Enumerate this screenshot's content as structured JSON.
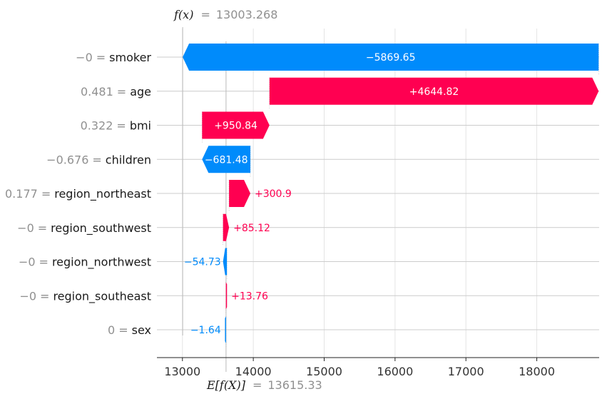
{
  "chart_data": {
    "type": "waterfall",
    "base_value": 13615.33,
    "output_value": 13003.268,
    "base_label": "E[f(X)]",
    "base_value_text": "13615.33",
    "output_label": "f(x)",
    "output_value_text": "13003.268",
    "features": [
      {
        "name": "smoker",
        "value": "−0",
        "contribution": -5869.65,
        "label": "−5869.65"
      },
      {
        "name": "age",
        "value": "0.481",
        "contribution": 4644.82,
        "label": "+4644.82"
      },
      {
        "name": "bmi",
        "value": "0.322",
        "contribution": 950.84,
        "label": "+950.84"
      },
      {
        "name": "children",
        "value": "−0.676",
        "contribution": -681.48,
        "label": "−681.48"
      },
      {
        "name": "region_northeast",
        "value": "0.177",
        "contribution": 300.9,
        "label": "+300.9"
      },
      {
        "name": "region_southwest",
        "value": "−0",
        "contribution": 85.12,
        "label": "+85.12"
      },
      {
        "name": "region_northwest",
        "value": "−0",
        "contribution": -54.73,
        "label": "−54.73"
      },
      {
        "name": "region_southeast",
        "value": "−0",
        "contribution": 13.76,
        "label": "+13.76"
      },
      {
        "name": "sex",
        "value": "0",
        "contribution": -1.64,
        "label": "−1.64"
      }
    ],
    "xlim": [
      12640,
      18880
    ],
    "x_ticks": [
      13000,
      14000,
      15000,
      16000,
      17000,
      18000
    ],
    "x_tick_labels": [
      "13000",
      "14000",
      "15000",
      "16000",
      "17000",
      "18000"
    ],
    "grid": true,
    "colors": {
      "positive": "#ff0051",
      "negative": "#008bfb",
      "grid": "#dddddd",
      "muted": "#909090"
    }
  }
}
